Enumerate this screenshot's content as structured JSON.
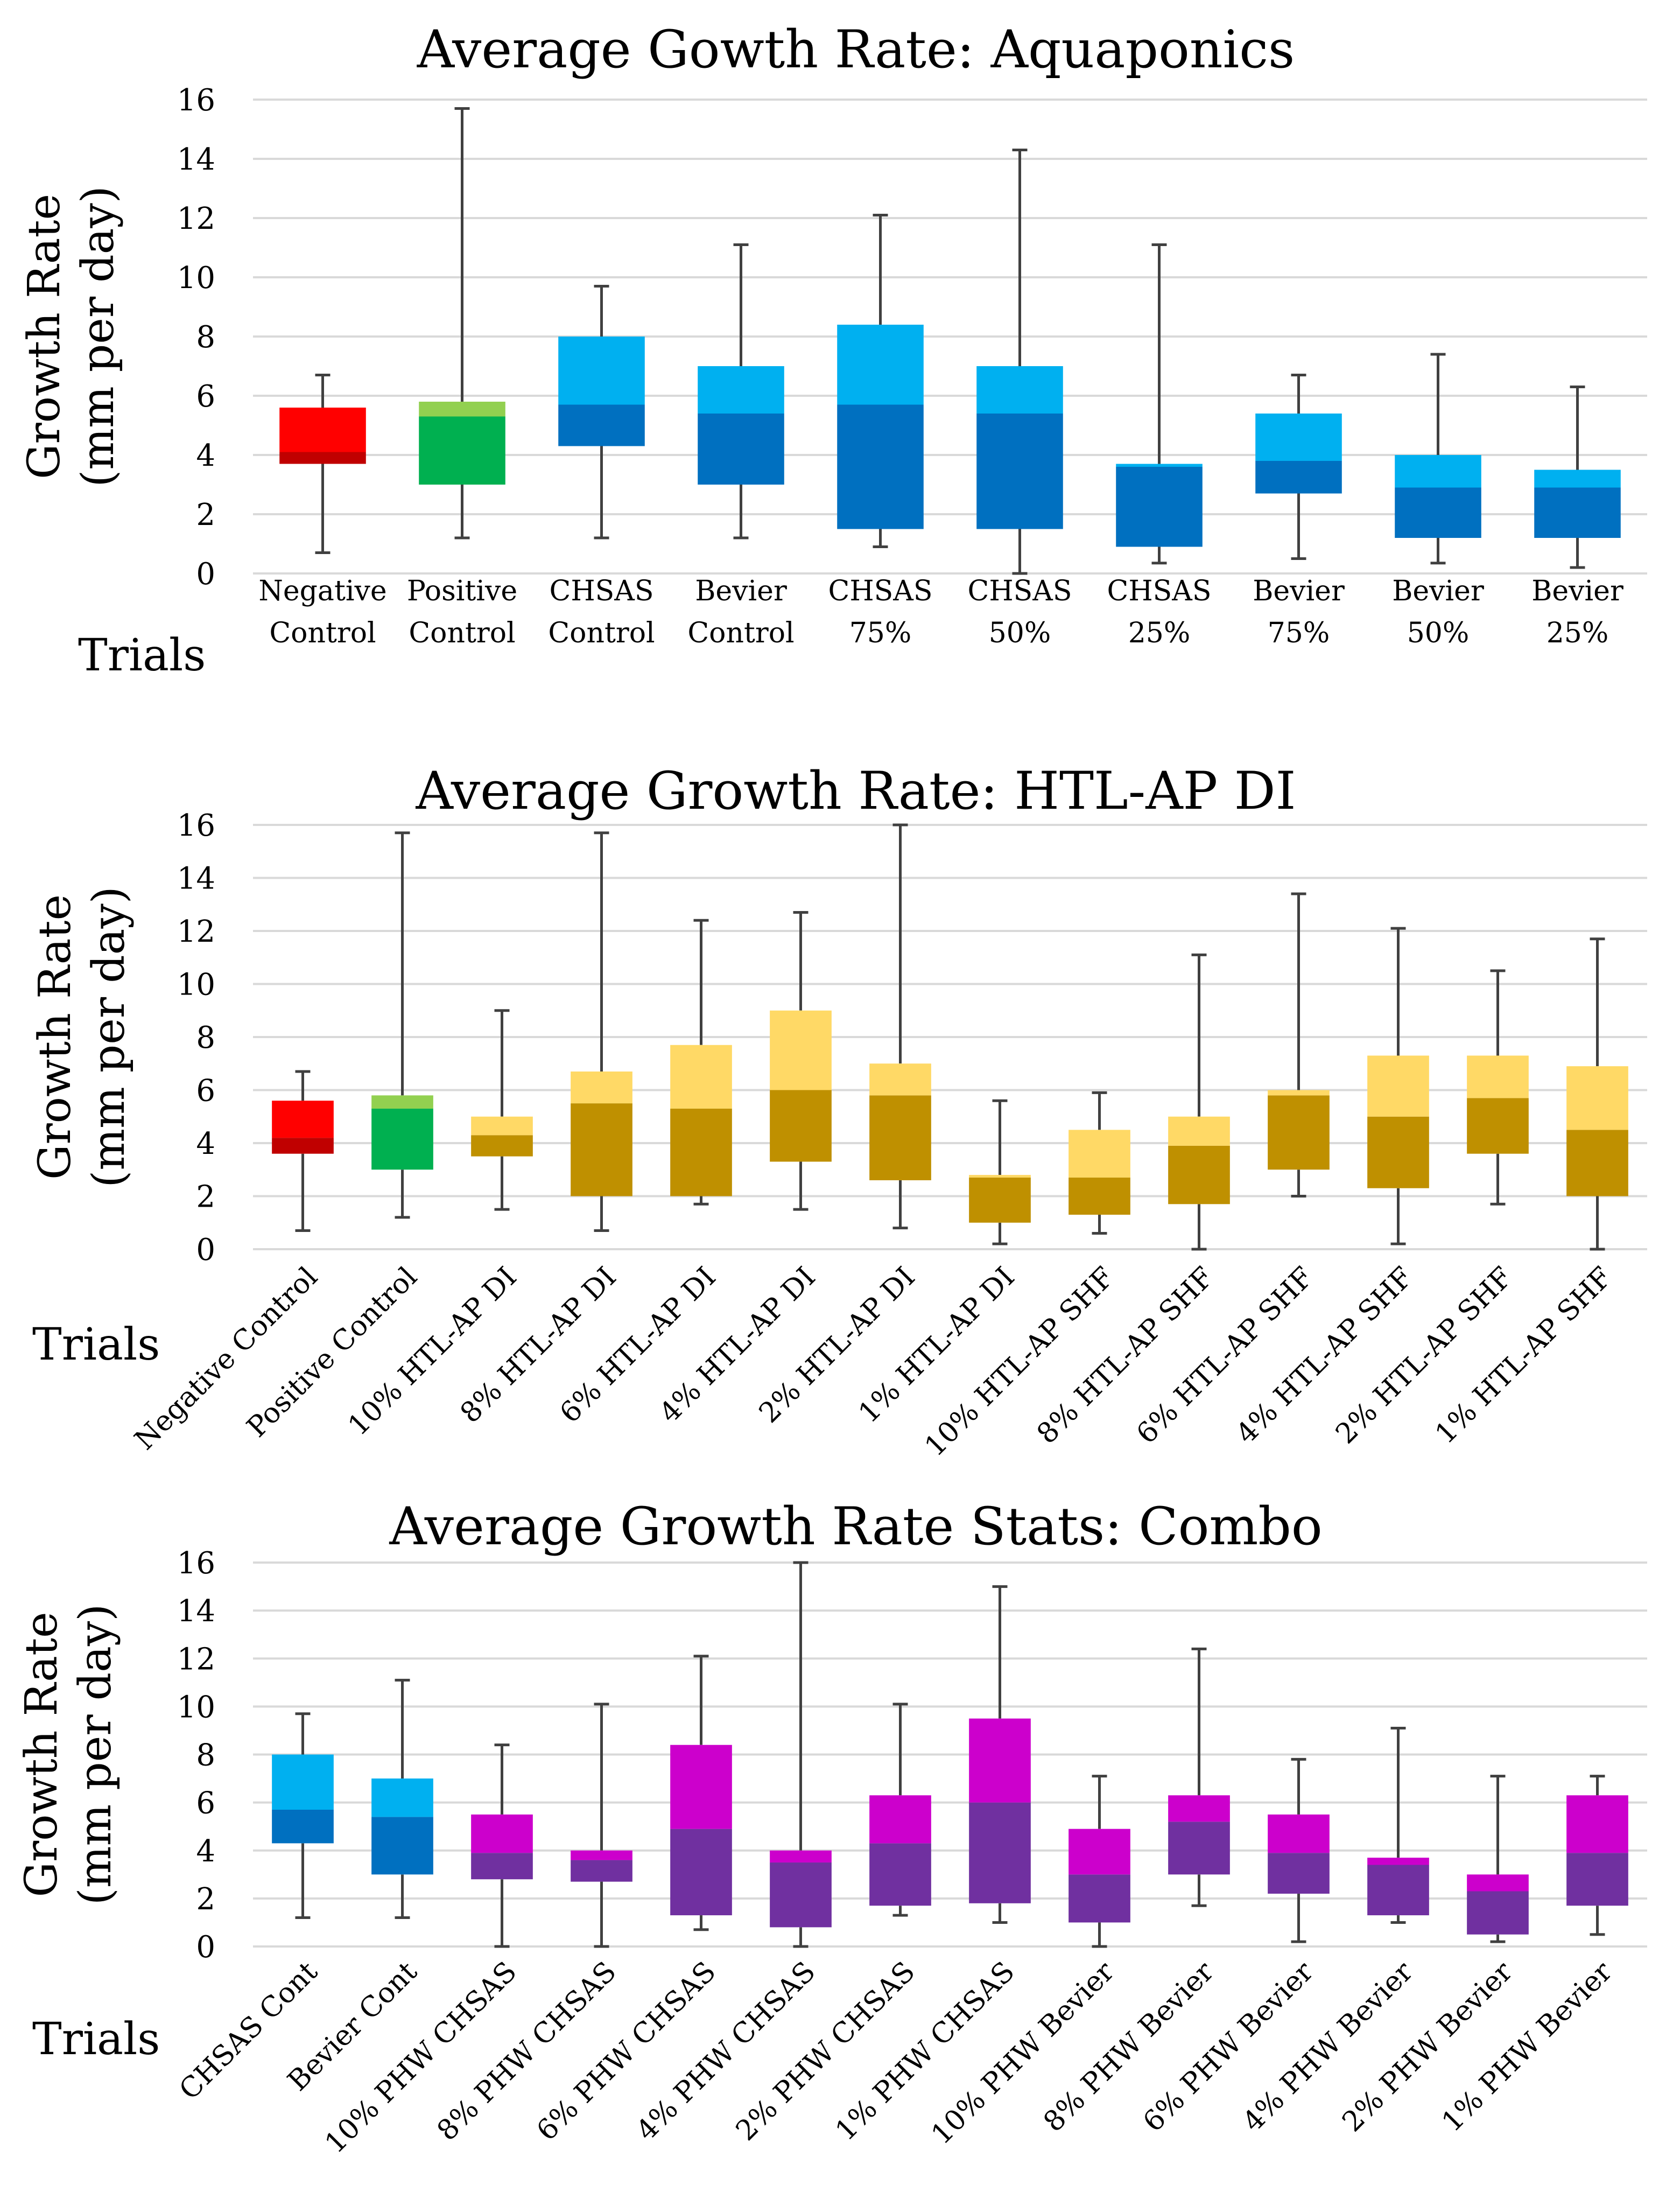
{
  "chart_data": [
    {
      "type": "boxplot",
      "title": "Average Gowth Rate: Aquaponics",
      "ylabel_line1": "Growth Rate",
      "ylabel_line2": "(mm per day)",
      "xlabel": "Trials",
      "ylim": [
        0,
        16
      ],
      "yticks": [
        0,
        2,
        4,
        6,
        8,
        10,
        12,
        14,
        16
      ],
      "grid": true,
      "label_style": "two-line",
      "categories": [
        [
          "Negative",
          "Control"
        ],
        [
          "Positive",
          "Control"
        ],
        [
          "CHSAS",
          "Control"
        ],
        [
          "Bevier",
          "Control"
        ],
        [
          "CHSAS",
          "75%"
        ],
        [
          "CHSAS",
          "50%"
        ],
        [
          "CHSAS",
          "25%"
        ],
        [
          "Bevier",
          "75%"
        ],
        [
          "Bevier",
          "50%"
        ],
        [
          "Bevier",
          "25%"
        ]
      ],
      "boxes": [
        {
          "min": 0.7,
          "q1": 3.7,
          "median": 4.1,
          "q3": 5.6,
          "max": 6.7,
          "lower_color": "#c00000",
          "upper_color": "#ff0000"
        },
        {
          "min": 1.2,
          "q1": 3.0,
          "median": 5.3,
          "q3": 5.8,
          "max": 15.7,
          "lower_color": "#00b050",
          "upper_color": "#92d050"
        },
        {
          "min": 1.2,
          "q1": 4.3,
          "median": 5.7,
          "q3": 8.0,
          "max": 9.7,
          "lower_color": "#0070c0",
          "upper_color": "#00b0f0"
        },
        {
          "min": 1.2,
          "q1": 3.0,
          "median": 5.4,
          "q3": 7.0,
          "max": 11.1,
          "lower_color": "#0070c0",
          "upper_color": "#00b0f0"
        },
        {
          "min": 0.9,
          "q1": 1.5,
          "median": 5.7,
          "q3": 8.4,
          "max": 12.1,
          "lower_color": "#0070c0",
          "upper_color": "#00b0f0"
        },
        {
          "min": 0.0,
          "q1": 1.5,
          "median": 5.4,
          "q3": 7.0,
          "max": 14.3,
          "lower_color": "#0070c0",
          "upper_color": "#00b0f0"
        },
        {
          "min": 0.35,
          "q1": 0.9,
          "median": 3.6,
          "q3": 3.7,
          "max": 11.1,
          "lower_color": "#0070c0",
          "upper_color": "#00b0f0"
        },
        {
          "min": 0.5,
          "q1": 2.7,
          "median": 3.8,
          "q3": 5.4,
          "max": 6.7,
          "lower_color": "#0070c0",
          "upper_color": "#00b0f0"
        },
        {
          "min": 0.35,
          "q1": 1.2,
          "median": 2.9,
          "q3": 4.0,
          "max": 7.4,
          "lower_color": "#0070c0",
          "upper_color": "#00b0f0"
        },
        {
          "min": 0.2,
          "q1": 1.2,
          "median": 2.9,
          "q3": 3.5,
          "max": 6.3,
          "lower_color": "#0070c0",
          "upper_color": "#00b0f0"
        }
      ]
    },
    {
      "type": "boxplot",
      "title": "Average Growth Rate: HTL-AP DI",
      "ylabel_line1": "Growth Rate",
      "ylabel_line2": "(mm per day)",
      "xlabel": "Trials",
      "ylim": [
        0,
        16
      ],
      "yticks": [
        0,
        2,
        4,
        6,
        8,
        10,
        12,
        14,
        16
      ],
      "grid": true,
      "label_style": "rotated",
      "categories": [
        "Negative Control",
        "Positive Control",
        "10% HTL-AP DI",
        "8% HTL-AP DI",
        "6% HTL-AP DI",
        "4% HTL-AP DI",
        "2% HTL-AP DI",
        "1% HTL-AP DI",
        "10% HTL-AP SHF",
        "8% HTL-AP SHF",
        "6% HTL-AP SHF",
        "4% HTL-AP SHF",
        "2% HTL-AP SHF",
        "1% HTL-AP SHF"
      ],
      "boxes": [
        {
          "min": 0.7,
          "q1": 3.6,
          "median": 4.2,
          "q3": 5.6,
          "max": 6.7,
          "lower_color": "#c00000",
          "upper_color": "#ff0000"
        },
        {
          "min": 1.2,
          "q1": 3.0,
          "median": 5.3,
          "q3": 5.8,
          "max": 15.7,
          "lower_color": "#00b050",
          "upper_color": "#92d050"
        },
        {
          "min": 1.5,
          "q1": 3.5,
          "median": 4.3,
          "q3": 5.0,
          "max": 9.0,
          "lower_color": "#bf9000",
          "upper_color": "#ffd966"
        },
        {
          "min": 0.7,
          "q1": 2.0,
          "median": 5.5,
          "q3": 6.7,
          "max": 15.7,
          "lower_color": "#bf9000",
          "upper_color": "#ffd966"
        },
        {
          "min": 1.7,
          "q1": 2.0,
          "median": 5.3,
          "q3": 7.7,
          "max": 12.4,
          "lower_color": "#bf9000",
          "upper_color": "#ffd966"
        },
        {
          "min": 1.5,
          "q1": 3.3,
          "median": 6.0,
          "q3": 9.0,
          "max": 12.7,
          "lower_color": "#bf9000",
          "upper_color": "#ffd966"
        },
        {
          "min": 0.8,
          "q1": 2.6,
          "median": 5.8,
          "q3": 7.0,
          "max": 16.0,
          "lower_color": "#bf9000",
          "upper_color": "#ffd966"
        },
        {
          "min": 0.2,
          "q1": 1.0,
          "median": 2.7,
          "q3": 2.8,
          "max": 5.6,
          "lower_color": "#bf9000",
          "upper_color": "#ffd966"
        },
        {
          "min": 0.6,
          "q1": 1.3,
          "median": 2.7,
          "q3": 4.5,
          "max": 5.9,
          "lower_color": "#bf9000",
          "upper_color": "#ffd966"
        },
        {
          "min": 0.0,
          "q1": 1.7,
          "median": 3.9,
          "q3": 5.0,
          "max": 11.1,
          "lower_color": "#bf9000",
          "upper_color": "#ffd966"
        },
        {
          "min": 2.0,
          "q1": 3.0,
          "median": 5.8,
          "q3": 6.0,
          "max": 13.4,
          "lower_color": "#bf9000",
          "upper_color": "#ffd966"
        },
        {
          "min": 0.2,
          "q1": 2.3,
          "median": 5.0,
          "q3": 7.3,
          "max": 12.1,
          "lower_color": "#bf9000",
          "upper_color": "#ffd966"
        },
        {
          "min": 1.7,
          "q1": 3.6,
          "median": 5.7,
          "q3": 7.3,
          "max": 10.5,
          "lower_color": "#bf9000",
          "upper_color": "#ffd966"
        },
        {
          "min": 0.0,
          "q1": 2.0,
          "median": 4.5,
          "q3": 6.9,
          "max": 11.7,
          "lower_color": "#bf9000",
          "upper_color": "#ffd966"
        }
      ]
    },
    {
      "type": "boxplot",
      "title": "Average Growth Rate Stats: Combo",
      "ylabel_line1": "Growth Rate",
      "ylabel_line2": "(mm per day)",
      "xlabel": "Trials",
      "ylim": [
        0,
        16
      ],
      "yticks": [
        0,
        2,
        4,
        6,
        8,
        10,
        12,
        14,
        16
      ],
      "grid": true,
      "label_style": "rotated",
      "categories": [
        "CHSAS Cont",
        "Bevier Cont",
        "10% PHW CHSAS",
        "8% PHW CHSAS",
        "6% PHW CHSAS",
        "4% PHW CHSAS",
        "2% PHW CHSAS",
        "1% PHW CHSAS",
        "10% PHW Bevier",
        "8% PHW Bevier",
        "6% PHW Bevier",
        "4% PHW Bevier",
        "2% PHW Bevier",
        "1% PHW Bevier"
      ],
      "boxes": [
        {
          "min": 1.2,
          "q1": 4.3,
          "median": 5.7,
          "q3": 8.0,
          "max": 9.7,
          "lower_color": "#0070c0",
          "upper_color": "#00b0f0"
        },
        {
          "min": 1.2,
          "q1": 3.0,
          "median": 5.4,
          "q3": 7.0,
          "max": 11.1,
          "lower_color": "#0070c0",
          "upper_color": "#00b0f0"
        },
        {
          "min": 0.0,
          "q1": 2.8,
          "median": 3.9,
          "q3": 5.5,
          "max": 8.4,
          "lower_color": "#7030a0",
          "upper_color": "#cc00cc"
        },
        {
          "min": 0.0,
          "q1": 2.7,
          "median": 3.6,
          "q3": 4.0,
          "max": 10.1,
          "lower_color": "#7030a0",
          "upper_color": "#cc00cc"
        },
        {
          "min": 0.7,
          "q1": 1.3,
          "median": 4.9,
          "q3": 8.4,
          "max": 12.1,
          "lower_color": "#7030a0",
          "upper_color": "#cc00cc"
        },
        {
          "min": 0.0,
          "q1": 0.8,
          "median": 3.5,
          "q3": 4.0,
          "max": 16.0,
          "lower_color": "#7030a0",
          "upper_color": "#cc00cc"
        },
        {
          "min": 1.3,
          "q1": 1.7,
          "median": 4.3,
          "q3": 6.3,
          "max": 10.1,
          "lower_color": "#7030a0",
          "upper_color": "#cc00cc"
        },
        {
          "min": 1.0,
          "q1": 1.8,
          "median": 6.0,
          "q3": 9.5,
          "max": 15.0,
          "lower_color": "#7030a0",
          "upper_color": "#cc00cc"
        },
        {
          "min": 0.0,
          "q1": 1.0,
          "median": 3.0,
          "q3": 4.9,
          "max": 7.1,
          "lower_color": "#7030a0",
          "upper_color": "#cc00cc"
        },
        {
          "min": 1.7,
          "q1": 3.0,
          "median": 5.2,
          "q3": 6.3,
          "max": 12.4,
          "lower_color": "#7030a0",
          "upper_color": "#cc00cc"
        },
        {
          "min": 0.2,
          "q1": 2.2,
          "median": 3.9,
          "q3": 5.5,
          "max": 7.8,
          "lower_color": "#7030a0",
          "upper_color": "#cc00cc"
        },
        {
          "min": 1.0,
          "q1": 1.3,
          "median": 3.4,
          "q3": 3.7,
          "max": 9.1,
          "lower_color": "#7030a0",
          "upper_color": "#cc00cc"
        },
        {
          "min": 0.2,
          "q1": 0.5,
          "median": 2.3,
          "q3": 3.0,
          "max": 7.1,
          "lower_color": "#7030a0",
          "upper_color": "#cc00cc"
        },
        {
          "min": 0.5,
          "q1": 1.7,
          "median": 3.9,
          "q3": 6.3,
          "max": 7.1,
          "lower_color": "#7030a0",
          "upper_color": "#cc00cc"
        }
      ]
    }
  ]
}
